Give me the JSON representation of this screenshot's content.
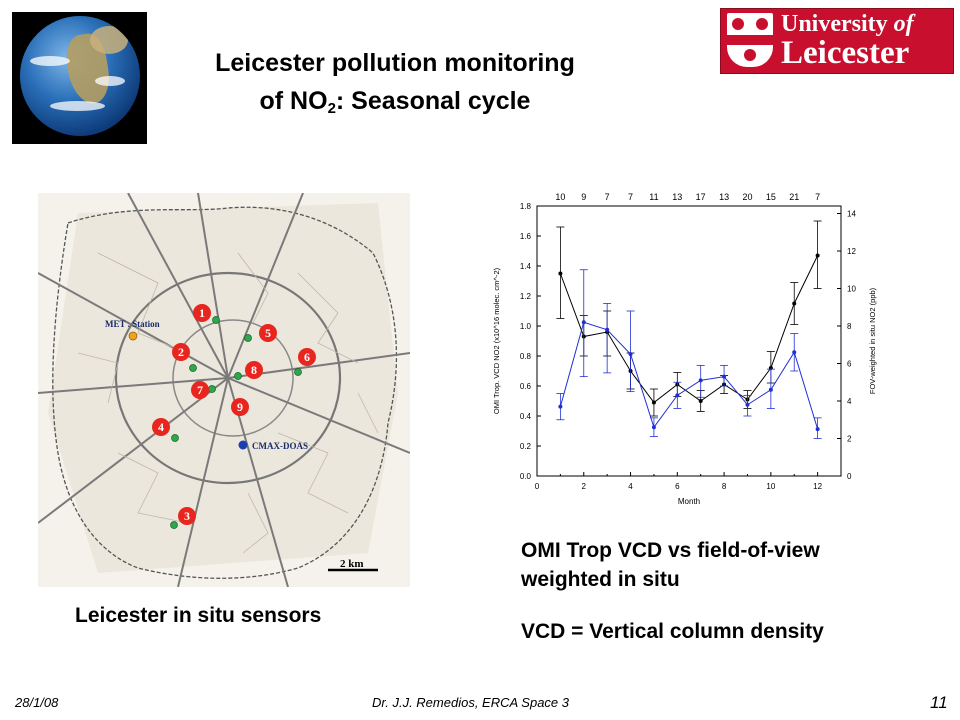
{
  "title": {
    "line1": "Leicester pollution monitoring",
    "line2_prefix": "of NO",
    "line2_sub": "2",
    "line2_suffix": ": Seasonal cycle"
  },
  "logo": {
    "word1": "University",
    "word2": "of",
    "word3": "Leicester"
  },
  "map": {
    "labels": {
      "met_station": "MET . Station",
      "cmax_doas": "CMAX-DOAS",
      "scale": "2 km"
    },
    "sites": [
      "1",
      "2",
      "3",
      "4",
      "5",
      "6",
      "7",
      "8",
      "9"
    ]
  },
  "captions": {
    "map": "Leicester in situ sensors",
    "chart": "OMI Trop VCD vs field-of-view weighted in situ",
    "vcd": "VCD = Vertical column density"
  },
  "footer": {
    "date": "28/1/08",
    "author": "Dr. J.J. Remedios, ERCA Space 3",
    "page": "11"
  },
  "colors": {
    "omi_series": "#000000",
    "insitu_series": "#1f2fd6",
    "logo_red": "#c8102e"
  },
  "chart_data": {
    "type": "line",
    "xlabel": "Month",
    "ylabel_left": "OMI Trop. VCD NO2 (x10^16 molec. cm^-2)",
    "ylabel_right": "FOV-weighted in situ NO2 (ppb)",
    "x": [
      1,
      2,
      3,
      4,
      5,
      6,
      7,
      8,
      9,
      10,
      11,
      12
    ],
    "xlim": [
      0,
      13
    ],
    "xticks": [
      "0",
      "2",
      "4",
      "6",
      "8",
      "10",
      "12"
    ],
    "ylim_left": [
      0.0,
      1.8
    ],
    "yticks_left": [
      "0.0",
      "0.2",
      "0.4",
      "0.6",
      "0.8",
      "1.0",
      "1.2",
      "1.4",
      "1.6",
      "1.8"
    ],
    "ylim_right": [
      0,
      14.4
    ],
    "yticks_right": [
      "0",
      "2",
      "4",
      "6",
      "8",
      "10",
      "12",
      "14"
    ],
    "top_counts": [
      "10",
      "9",
      "7",
      "7",
      "11",
      "13",
      "17",
      "13",
      "20",
      "15",
      "21",
      "7"
    ],
    "series": [
      {
        "axis": "left",
        "values": [
          1.35,
          0.93,
          0.96,
          0.7,
          0.49,
          0.61,
          0.5,
          0.61,
          0.51,
          0.72,
          1.15,
          1.47
        ],
        "err_low": [
          1.05,
          0.8,
          0.8,
          0.58,
          0.4,
          0.53,
          0.43,
          0.55,
          0.45,
          0.62,
          1.01,
          1.25
        ],
        "err_high": [
          1.66,
          1.07,
          1.1,
          0.82,
          0.58,
          0.69,
          0.57,
          0.67,
          0.57,
          0.83,
          1.29,
          1.7
        ]
      },
      {
        "axis": "right",
        "values": [
          3.7,
          8.2,
          7.8,
          6.5,
          2.6,
          4.3,
          5.1,
          5.3,
          3.8,
          4.6,
          6.6,
          2.5
        ],
        "err_low": [
          3.0,
          5.3,
          5.5,
          4.5,
          2.1,
          3.6,
          4.2,
          4.8,
          3.2,
          3.6,
          5.6,
          2.0
        ],
        "err_high": [
          4.4,
          11.0,
          9.2,
          8.8,
          3.1,
          5.0,
          5.9,
          5.9,
          4.3,
          5.7,
          7.6,
          3.1
        ]
      }
    ]
  }
}
